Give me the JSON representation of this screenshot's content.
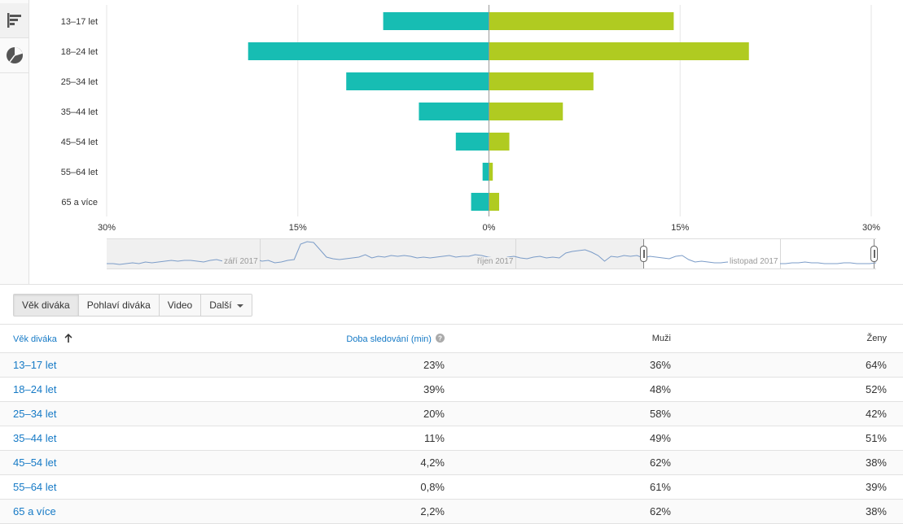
{
  "chart_data": {
    "type": "bar",
    "orientation": "horizontal-diverging",
    "categories": [
      "13–17 let",
      "18–24 let",
      "25–34 let",
      "35–44 let",
      "45–54 let",
      "55–64 let",
      "65 a více"
    ],
    "series": [
      {
        "name": "Muži",
        "values": [
          -8.3,
          -18.9,
          -11.2,
          -5.5,
          -2.6,
          -0.5,
          -1.4
        ],
        "color": "#17bdb3"
      },
      {
        "name": "Ženy",
        "values": [
          14.5,
          20.4,
          8.2,
          5.8,
          1.6,
          0.3,
          0.8
        ],
        "color": "#b0cb21"
      }
    ],
    "xlim": [
      -30,
      30
    ],
    "xticks": [
      -30,
      -15,
      0,
      15,
      30
    ],
    "xtick_labels": [
      "30%",
      "15%",
      "0%",
      "15%",
      "30%"
    ],
    "grid": true
  },
  "range_navigator": {
    "months": [
      "září 2017",
      "říjen 2017",
      "listopad 2017"
    ],
    "line_color": "#7b9cc8"
  },
  "tabs": [
    {
      "label": "Věk diváka",
      "active": true
    },
    {
      "label": "Pohlaví diváka",
      "active": false
    },
    {
      "label": "Video",
      "active": false
    },
    {
      "label": "Další",
      "active": false
    }
  ],
  "table": {
    "headers": {
      "age": "Věk diváka",
      "watch_time": "Doba sledování (min)",
      "male": "Muži",
      "female": "Ženy"
    },
    "rows": [
      {
        "age": "13–17 let",
        "watch_time": "23%",
        "male": "36%",
        "female": "64%"
      },
      {
        "age": "18–24 let",
        "watch_time": "39%",
        "male": "48%",
        "female": "52%"
      },
      {
        "age": "25–34 let",
        "watch_time": "20%",
        "male": "58%",
        "female": "42%"
      },
      {
        "age": "35–44 let",
        "watch_time": "11%",
        "male": "49%",
        "female": "51%"
      },
      {
        "age": "45–54 let",
        "watch_time": "4,2%",
        "male": "62%",
        "female": "38%"
      },
      {
        "age": "55–64 let",
        "watch_time": "0,8%",
        "male": "61%",
        "female": "39%"
      },
      {
        "age": "65 a více",
        "watch_time": "2,2%",
        "male": "62%",
        "female": "38%"
      }
    ]
  },
  "icons": {
    "bar_chart_view": "bar-chart-icon",
    "pie_chart_view": "pie-chart-icon",
    "sort": "sort-up-arrow-icon",
    "help": "help-icon"
  }
}
